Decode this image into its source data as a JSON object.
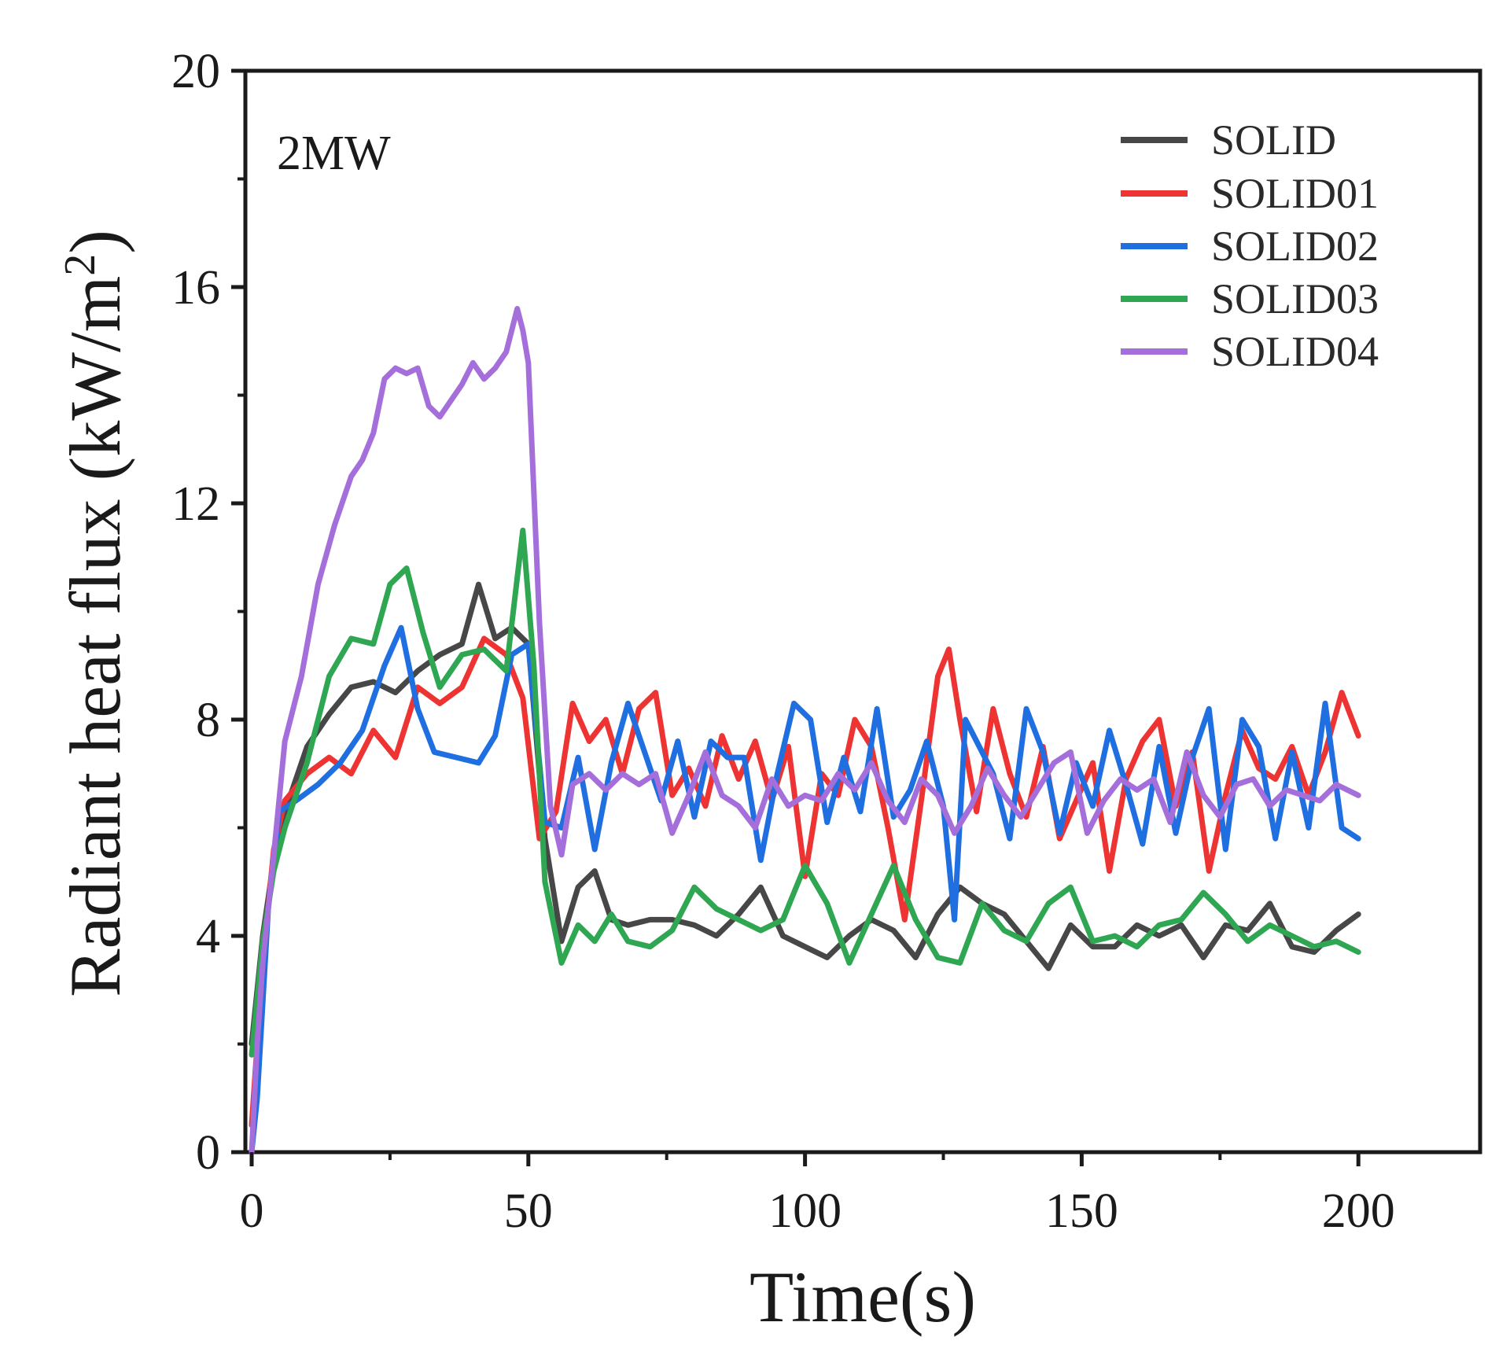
{
  "chart_data": {
    "type": "line",
    "title": "",
    "annotation": "2MW",
    "xlabel": "Time(s)",
    "ylabel": "Radiant heat flux (kW/m",
    "ylabel_sup": "2",
    "ylabel_close": ")",
    "xlim": [
      0,
      222
    ],
    "ylim": [
      0,
      20
    ],
    "xticks": [
      0,
      50,
      100,
      150,
      200
    ],
    "yticks": [
      0,
      4,
      8,
      12,
      16,
      20
    ],
    "legend_position": "top-right",
    "series": [
      {
        "name": "SOLID",
        "color": "#474747",
        "x": [
          0,
          2,
          4,
          6,
          10,
          14,
          18,
          22,
          26,
          30,
          34,
          38,
          41,
          44,
          47,
          50,
          53,
          56,
          59,
          62,
          65,
          68,
          72,
          76,
          80,
          84,
          88,
          92,
          96,
          100,
          104,
          108,
          112,
          116,
          120,
          124,
          128,
          132,
          136,
          140,
          144,
          148,
          152,
          156,
          160,
          164,
          168,
          172,
          176,
          180,
          184,
          188,
          192,
          196,
          200
        ],
        "y": [
          2.0,
          4.0,
          5.4,
          6.3,
          7.5,
          8.1,
          8.6,
          8.7,
          8.5,
          8.9,
          9.2,
          9.4,
          10.5,
          9.5,
          9.7,
          9.4,
          5.8,
          3.9,
          4.9,
          5.2,
          4.3,
          4.2,
          4.3,
          4.3,
          4.2,
          4.0,
          4.4,
          4.9,
          4.0,
          3.8,
          3.6,
          4.0,
          4.3,
          4.1,
          3.6,
          4.4,
          4.9,
          4.6,
          4.4,
          3.9,
          3.4,
          4.2,
          3.8,
          3.8,
          4.2,
          4.0,
          4.2,
          3.6,
          4.2,
          4.1,
          4.6,
          3.8,
          3.7,
          4.1,
          4.4
        ]
      },
      {
        "name": "SOLID01",
        "color": "#ee3333",
        "x": [
          0,
          2,
          4,
          6,
          10,
          14,
          18,
          22,
          26,
          30,
          34,
          38,
          42,
          46,
          49,
          52,
          55,
          58,
          61,
          64,
          67,
          70,
          73,
          76,
          79,
          82,
          85,
          88,
          91,
          94,
          97,
          100,
          103,
          106,
          109,
          112,
          115,
          118,
          121,
          124,
          126,
          128,
          131,
          134,
          137,
          140,
          143,
          146,
          149,
          152,
          155,
          158,
          161,
          164,
          167,
          170,
          173,
          176,
          179,
          182,
          185,
          188,
          191,
          194,
          197,
          200
        ],
        "y": [
          0.5,
          3.5,
          5.6,
          6.5,
          7.0,
          7.3,
          7.0,
          7.8,
          7.3,
          8.6,
          8.3,
          8.6,
          9.5,
          9.2,
          8.4,
          5.8,
          6.3,
          8.3,
          7.6,
          8.0,
          7.0,
          8.2,
          8.5,
          6.6,
          7.1,
          6.4,
          7.7,
          6.9,
          7.6,
          6.5,
          7.5,
          5.1,
          7.0,
          6.6,
          8.0,
          7.5,
          6.0,
          4.3,
          6.5,
          8.8,
          9.3,
          8.0,
          6.3,
          8.2,
          7.0,
          6.2,
          7.5,
          5.8,
          6.5,
          7.2,
          5.2,
          6.9,
          7.6,
          8.0,
          6.4,
          7.4,
          5.2,
          6.6,
          7.8,
          7.1,
          6.9,
          7.5,
          6.6,
          7.4,
          8.5,
          7.7
        ]
      },
      {
        "name": "SOLID02",
        "color": "#1f6fe0",
        "x": [
          0,
          1,
          3,
          5,
          8,
          12,
          16,
          20,
          24,
          27,
          30,
          33,
          37,
          41,
          44,
          47,
          50,
          53,
          56,
          59,
          62,
          65,
          68,
          71,
          74,
          77,
          80,
          83,
          86,
          89,
          92,
          95,
          98,
          101,
          104,
          107,
          110,
          113,
          116,
          119,
          122,
          125,
          127,
          129,
          131,
          134,
          137,
          140,
          143,
          146,
          149,
          152,
          155,
          158,
          161,
          164,
          167,
          170,
          173,
          176,
          179,
          182,
          185,
          188,
          191,
          194,
          197,
          200
        ],
        "y": [
          0.0,
          1.0,
          4.5,
          6.3,
          6.5,
          6.8,
          7.2,
          7.8,
          9.0,
          9.7,
          8.2,
          7.4,
          7.3,
          7.2,
          7.7,
          9.2,
          9.4,
          6.1,
          6.0,
          7.3,
          5.6,
          7.2,
          8.3,
          7.4,
          6.5,
          7.6,
          6.2,
          7.6,
          7.3,
          7.3,
          5.4,
          7.0,
          8.3,
          8.0,
          6.1,
          7.3,
          6.3,
          8.2,
          6.2,
          6.7,
          7.6,
          6.4,
          4.3,
          8.0,
          7.6,
          7.0,
          5.8,
          8.2,
          7.4,
          5.9,
          7.2,
          6.4,
          7.8,
          6.8,
          5.7,
          7.5,
          5.9,
          7.3,
          8.2,
          5.6,
          8.0,
          7.5,
          5.8,
          7.4,
          6.0,
          8.3,
          6.0,
          5.8
        ]
      },
      {
        "name": "SOLID03",
        "color": "#2ea652",
        "x": [
          0,
          2,
          4,
          6,
          10,
          14,
          18,
          22,
          25,
          28,
          31,
          34,
          38,
          42,
          46,
          49,
          51,
          53,
          56,
          59,
          62,
          65,
          68,
          72,
          76,
          80,
          84,
          88,
          92,
          96,
          100,
          104,
          108,
          112,
          116,
          120,
          124,
          128,
          132,
          136,
          140,
          144,
          148,
          152,
          156,
          160,
          164,
          168,
          172,
          176,
          180,
          184,
          188,
          192,
          196,
          200
        ],
        "y": [
          1.8,
          3.9,
          5.2,
          6.0,
          7.2,
          8.8,
          9.5,
          9.4,
          10.5,
          10.8,
          9.6,
          8.6,
          9.2,
          9.3,
          8.9,
          11.5,
          9.0,
          5.0,
          3.5,
          4.2,
          3.9,
          4.4,
          3.9,
          3.8,
          4.1,
          4.9,
          4.5,
          4.3,
          4.1,
          4.3,
          5.3,
          4.6,
          3.5,
          4.4,
          5.3,
          4.3,
          3.6,
          3.5,
          4.6,
          4.1,
          3.9,
          4.6,
          4.9,
          3.9,
          4.0,
          3.8,
          4.2,
          4.3,
          4.8,
          4.4,
          3.9,
          4.2,
          4.0,
          3.8,
          3.9,
          3.7
        ]
      },
      {
        "name": "SOLID04",
        "color": "#a56fdb",
        "x": [
          0,
          1,
          2,
          4,
          6,
          9,
          12,
          15,
          18,
          20,
          22,
          24,
          26,
          28,
          30,
          32,
          34,
          36,
          38,
          40,
          42,
          44,
          46,
          48,
          49,
          50,
          52,
          54,
          56,
          58,
          61,
          64,
          67,
          70,
          73,
          76,
          79,
          82,
          85,
          88,
          91,
          94,
          97,
          100,
          103,
          106,
          109,
          112,
          115,
          118,
          121,
          124,
          127,
          130,
          133,
          136,
          139,
          142,
          145,
          148,
          151,
          154,
          157,
          160,
          163,
          166,
          169,
          172,
          175,
          178,
          181,
          184,
          187,
          190,
          193,
          196,
          200
        ],
        "y": [
          0.0,
          2.0,
          3.5,
          5.5,
          7.6,
          8.8,
          10.5,
          11.6,
          12.5,
          12.8,
          13.3,
          14.3,
          14.5,
          14.4,
          14.5,
          13.8,
          13.6,
          13.9,
          14.2,
          14.6,
          14.3,
          14.5,
          14.8,
          15.6,
          15.2,
          14.6,
          9.8,
          6.4,
          5.5,
          6.8,
          7.0,
          6.7,
          7.0,
          6.8,
          7.0,
          5.9,
          6.6,
          7.4,
          6.6,
          6.4,
          6.0,
          6.9,
          6.4,
          6.6,
          6.5,
          7.0,
          6.7,
          7.2,
          6.5,
          6.1,
          6.9,
          6.6,
          5.9,
          6.4,
          7.1,
          6.6,
          6.2,
          6.7,
          7.2,
          7.4,
          5.9,
          6.5,
          6.9,
          6.7,
          6.9,
          6.1,
          7.4,
          6.6,
          6.2,
          6.8,
          6.9,
          6.4,
          6.7,
          6.6,
          6.5,
          6.8,
          6.6
        ]
      }
    ]
  }
}
